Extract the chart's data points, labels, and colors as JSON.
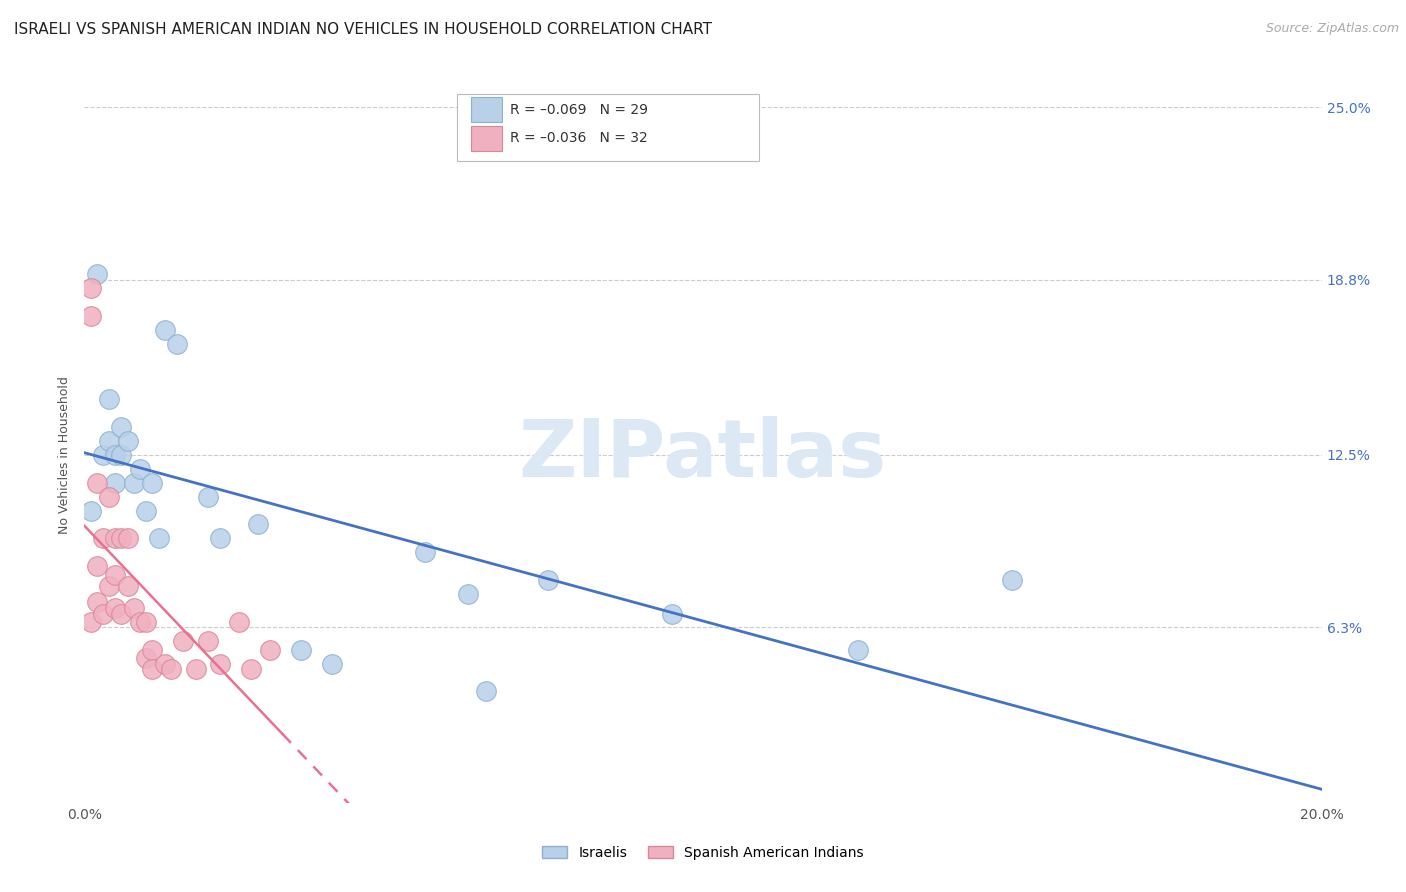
{
  "title": "ISRAELI VS SPANISH AMERICAN INDIAN NO VEHICLES IN HOUSEHOLD CORRELATION CHART",
  "source": "Source: ZipAtlas.com",
  "ylabel": "No Vehicles in Household",
  "xlim": [
    0.0,
    0.2
  ],
  "ylim": [
    0.0,
    0.25
  ],
  "xtick_positions": [
    0.0,
    0.04,
    0.08,
    0.12,
    0.16,
    0.2
  ],
  "xtick_labels": [
    "0.0%",
    "",
    "",
    "",
    "",
    "20.0%"
  ],
  "ytick_labels_right": [
    "6.3%",
    "12.5%",
    "18.8%",
    "25.0%"
  ],
  "yticks_right": [
    0.063,
    0.125,
    0.188,
    0.25
  ],
  "israelis_x": [
    0.001,
    0.002,
    0.003,
    0.004,
    0.004,
    0.005,
    0.005,
    0.006,
    0.006,
    0.007,
    0.008,
    0.009,
    0.01,
    0.011,
    0.012,
    0.013,
    0.015,
    0.02,
    0.022,
    0.028,
    0.035,
    0.04,
    0.055,
    0.062,
    0.065,
    0.075,
    0.095,
    0.125,
    0.15
  ],
  "israelis_y": [
    0.105,
    0.19,
    0.125,
    0.145,
    0.13,
    0.125,
    0.115,
    0.135,
    0.125,
    0.13,
    0.115,
    0.12,
    0.105,
    0.115,
    0.095,
    0.17,
    0.165,
    0.11,
    0.095,
    0.1,
    0.055,
    0.05,
    0.09,
    0.075,
    0.04,
    0.08,
    0.068,
    0.055,
    0.08
  ],
  "spanish_x": [
    0.001,
    0.001,
    0.001,
    0.002,
    0.002,
    0.002,
    0.003,
    0.003,
    0.004,
    0.004,
    0.005,
    0.005,
    0.005,
    0.006,
    0.006,
    0.007,
    0.007,
    0.008,
    0.009,
    0.01,
    0.01,
    0.011,
    0.011,
    0.013,
    0.014,
    0.016,
    0.018,
    0.02,
    0.022,
    0.025,
    0.027,
    0.03
  ],
  "spanish_y": [
    0.185,
    0.175,
    0.065,
    0.115,
    0.085,
    0.072,
    0.095,
    0.068,
    0.11,
    0.078,
    0.095,
    0.082,
    0.07,
    0.095,
    0.068,
    0.095,
    0.078,
    0.07,
    0.065,
    0.065,
    0.052,
    0.055,
    0.048,
    0.05,
    0.048,
    0.058,
    0.048,
    0.058,
    0.05,
    0.065,
    0.048,
    0.055
  ],
  "israeli_scatter_color": "#b8d0e8",
  "israeli_edge_color": "#8fb0d0",
  "spanish_scatter_color": "#f0b0c0",
  "spanish_edge_color": "#d88898",
  "israeli_line_color": "#4472c4",
  "spanish_line_color": "#e87090",
  "watermark_text": "ZIPatlas",
  "watermark_color": "#dce8f4",
  "background_color": "#ffffff",
  "title_fontsize": 11,
  "source_fontsize": 9,
  "axis_label_fontsize": 9,
  "tick_fontsize": 10,
  "right_tick_color": "#4472c4",
  "legend_top_text1": "R = –0.069   N = 29",
  "legend_top_text2": "R = –0.036   N = 32",
  "legend_bottom_labels": [
    "Israelis",
    "Spanish American Indians"
  ]
}
